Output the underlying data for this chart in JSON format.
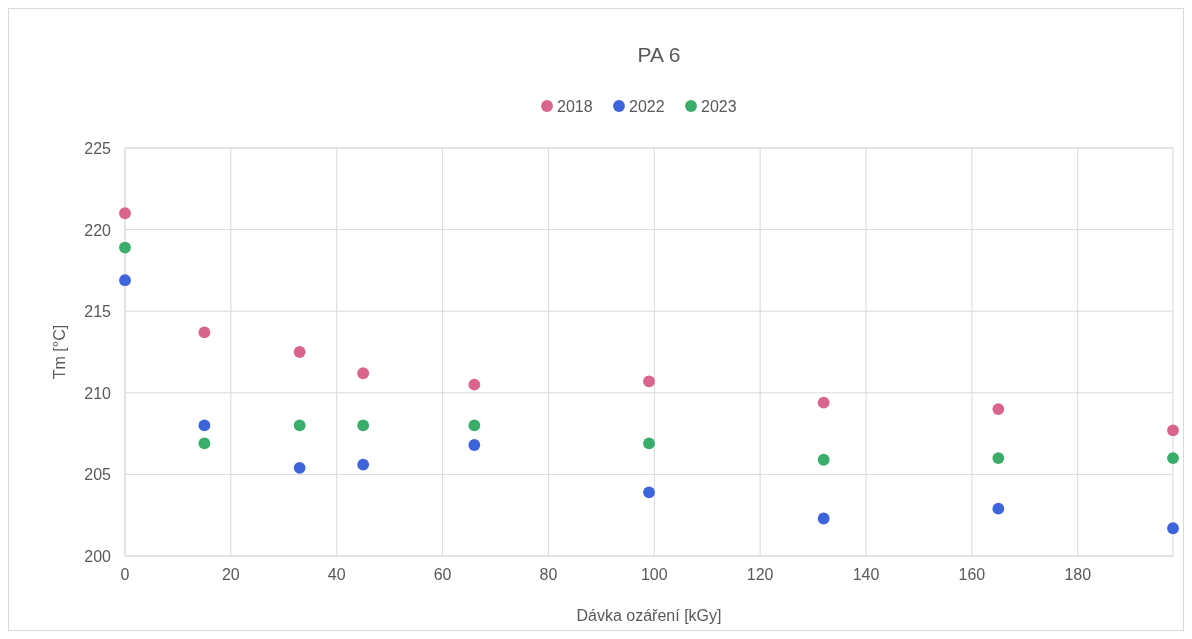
{
  "chart_data": {
    "type": "scatter",
    "title": "PA 6",
    "xlabel": "Dávka ozáření  [kGy]",
    "ylabel": "Tm [°C]",
    "x": [
      0,
      15,
      33,
      45,
      66,
      99,
      132,
      165,
      198
    ],
    "series": [
      {
        "name": "2018",
        "color": "#d9658c",
        "values": [
          221,
          213.7,
          212.5,
          211.2,
          210.5,
          210.7,
          209.4,
          209,
          207.7
        ]
      },
      {
        "name": "2022",
        "color": "#3e64db",
        "values": [
          216.9,
          208,
          205.4,
          205.6,
          206.8,
          203.9,
          202.3,
          202.9,
          201.7
        ]
      },
      {
        "name": "2023",
        "color": "#3aad6b",
        "values": [
          218.9,
          206.9,
          208,
          208,
          208,
          206.9,
          205.9,
          206,
          206
        ]
      }
    ],
    "xlim": [
      0,
      198
    ],
    "xticks": [
      0,
      20,
      40,
      60,
      80,
      100,
      120,
      140,
      160,
      180
    ],
    "ylim": [
      200,
      225
    ],
    "yticks": [
      200,
      205,
      210,
      215,
      220,
      225
    ],
    "grid": true,
    "legend": "top",
    "marker": "circle"
  }
}
